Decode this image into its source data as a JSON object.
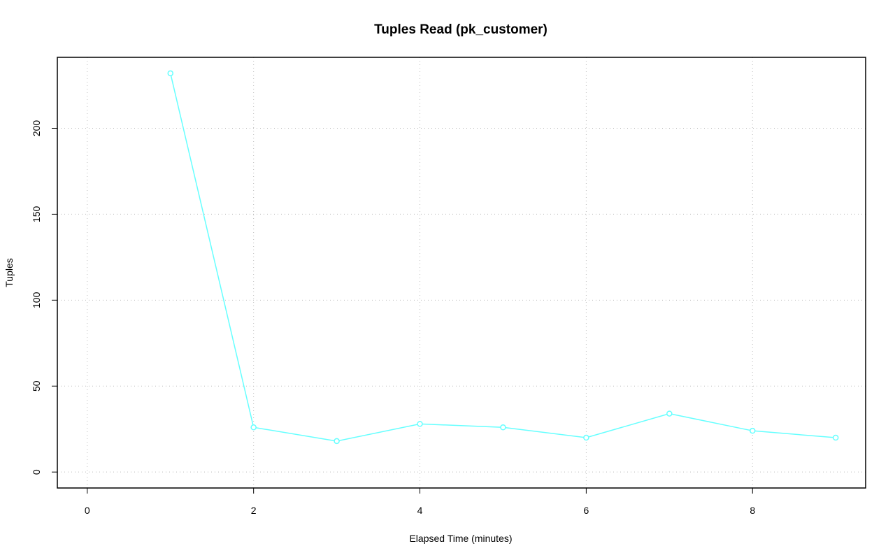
{
  "chart_data": {
    "type": "line",
    "title": "Tuples Read (pk_customer)",
    "xlabel": "Elapsed Time (minutes)",
    "ylabel": "Tuples",
    "x": [
      1,
      2,
      3,
      4,
      5,
      6,
      7,
      8,
      9
    ],
    "series": [
      {
        "name": "pk_customer",
        "color": "#66ffff",
        "values": [
          232,
          26,
          18,
          28,
          26,
          20,
          34,
          24,
          20
        ]
      }
    ],
    "xlim": [
      -0.36,
      9.36
    ],
    "ylim": [
      -9.28,
      241.28
    ],
    "xticks": [
      0,
      2,
      4,
      6,
      8
    ],
    "yticks": [
      0,
      50,
      100,
      150,
      200
    ],
    "grid": true
  }
}
